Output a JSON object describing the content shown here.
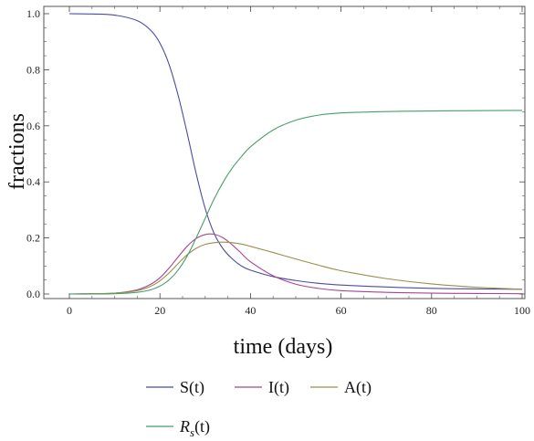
{
  "chart_data": {
    "type": "line",
    "xlabel": "time (days)",
    "ylabel": "fractions",
    "xlim": [
      0,
      100
    ],
    "ylim": [
      0,
      1.0
    ],
    "x_ticks": [
      0,
      20,
      40,
      60,
      80,
      100
    ],
    "y_ticks": [
      0.0,
      0.2,
      0.4,
      0.6,
      0.8,
      1.0
    ],
    "x_tick_labels": [
      "0",
      "20",
      "40",
      "60",
      "80",
      "100"
    ],
    "y_tick_labels": [
      "0.0",
      "0.2",
      "0.4",
      "0.6",
      "0.8",
      "1.0"
    ],
    "grid": false,
    "legend_position": "bottom",
    "x": [
      0,
      5,
      10,
      15,
      18,
      20,
      22,
      24,
      26,
      28,
      30,
      32,
      34,
      36,
      38,
      40,
      45,
      50,
      55,
      60,
      70,
      80,
      90,
      100
    ],
    "series": [
      {
        "name": "S(t)",
        "color": "#4b4ba6",
        "values": [
          1.0,
          0.999,
          0.995,
          0.975,
          0.94,
          0.895,
          0.82,
          0.71,
          0.575,
          0.43,
          0.305,
          0.215,
          0.16,
          0.125,
          0.1,
          0.085,
          0.062,
          0.048,
          0.038,
          0.032,
          0.025,
          0.02,
          0.018,
          0.017
        ]
      },
      {
        "name": "I(t)",
        "color": "#a8458f",
        "values": [
          0.0,
          0.001,
          0.003,
          0.015,
          0.035,
          0.058,
          0.092,
          0.132,
          0.17,
          0.198,
          0.212,
          0.213,
          0.2,
          0.175,
          0.145,
          0.115,
          0.065,
          0.035,
          0.02,
          0.012,
          0.006,
          0.003,
          0.002,
          0.001
        ]
      },
      {
        "name": "A(t)",
        "color": "#9c8d4a",
        "values": [
          0.0,
          0.001,
          0.003,
          0.012,
          0.028,
          0.047,
          0.075,
          0.108,
          0.14,
          0.163,
          0.177,
          0.183,
          0.185,
          0.183,
          0.178,
          0.17,
          0.148,
          0.125,
          0.103,
          0.083,
          0.055,
          0.036,
          0.024,
          0.017
        ]
      },
      {
        "name": "R_s(t)",
        "color": "#4a9e6b",
        "values": [
          0.0,
          0.0,
          0.001,
          0.006,
          0.015,
          0.028,
          0.05,
          0.085,
          0.135,
          0.2,
          0.27,
          0.34,
          0.4,
          0.45,
          0.49,
          0.525,
          0.585,
          0.62,
          0.638,
          0.646,
          0.651,
          0.653,
          0.654,
          0.655
        ]
      }
    ],
    "legend_entries": [
      {
        "main": "S(t)"
      },
      {
        "main": "I(t)"
      },
      {
        "main": "A(t)"
      },
      {
        "main": "R",
        "sub": "s",
        "suffix": "(t)"
      }
    ]
  }
}
